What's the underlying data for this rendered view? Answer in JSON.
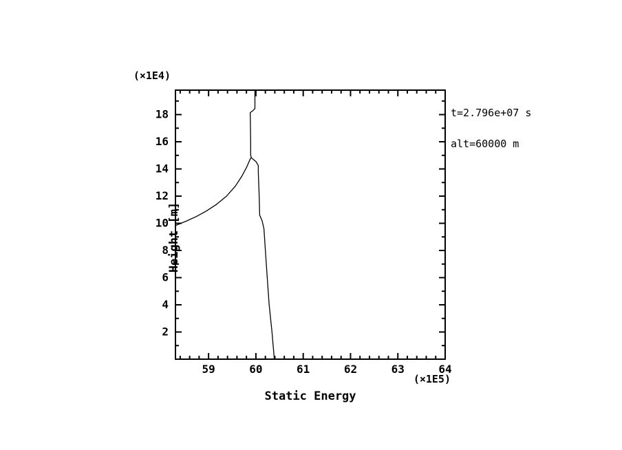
{
  "page": {
    "background_color": "#ffffff",
    "line_color": "#000000"
  },
  "chart_data": {
    "type": "line",
    "title": "",
    "xlabel": "Static Energy",
    "ylabel": "Height [m]",
    "y_scale_note": "(×1E4)",
    "x_scale_note": "(×1E5)",
    "xlim": [
      58.3,
      64.0
    ],
    "ylim": [
      0,
      19.8
    ],
    "x_major_ticks": [
      59,
      60,
      61,
      62,
      63,
      64
    ],
    "x_minor_step": 0.2,
    "y_major_ticks": [
      2,
      4,
      6,
      8,
      10,
      12,
      14,
      16,
      18
    ],
    "y_minor_step": 1,
    "grid": false,
    "legend_position": "none",
    "annotations": {
      "time": "t=2.796e+07 s",
      "altitude": "alt=60000 m"
    },
    "series": [
      {
        "name": "profile",
        "x": [
          60.39,
          60.34,
          60.28,
          60.24,
          60.2,
          60.17,
          60.13,
          60.08,
          60.07,
          60.05,
          60.05,
          60.0,
          59.91,
          59.89,
          59.89,
          59.88,
          59.94,
          59.98,
          59.98
        ],
        "y": [
          0.0,
          2.0,
          4.0,
          6.0,
          8.0,
          9.6,
          10.2,
          10.6,
          12.0,
          13.75,
          14.25,
          14.55,
          14.8,
          15.0,
          16.0,
          18.15,
          18.3,
          18.45,
          19.8
        ]
      },
      {
        "name": "left-branch",
        "x": [
          58.31,
          58.52,
          58.74,
          58.95,
          59.17,
          59.38,
          59.57,
          59.7,
          59.8,
          59.85,
          59.89
        ],
        "y": [
          9.85,
          10.15,
          10.5,
          10.9,
          11.4,
          12.0,
          12.75,
          13.45,
          14.1,
          14.5,
          14.8
        ]
      }
    ]
  }
}
